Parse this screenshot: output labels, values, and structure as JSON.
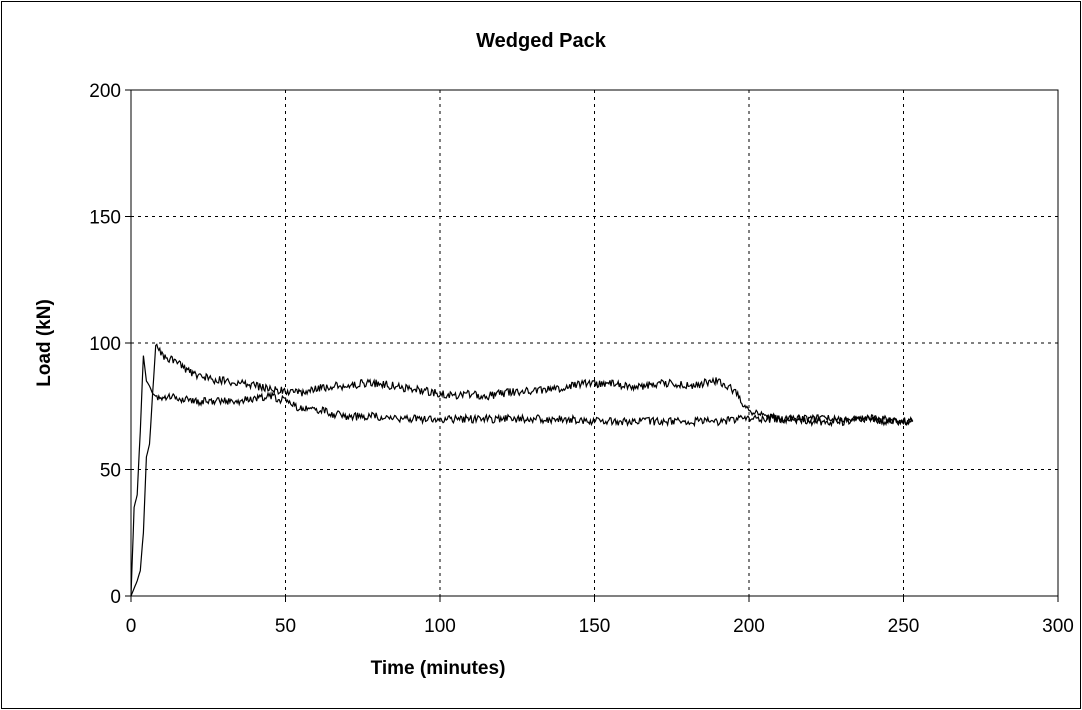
{
  "chart_data": {
    "type": "line",
    "title": "Wedged Pack",
    "xlabel": "Time (minutes)",
    "ylabel": "Load (kN)",
    "xlim": [
      0,
      300
    ],
    "ylim": [
      0,
      200
    ],
    "x_ticks": [
      0,
      50,
      100,
      150,
      200,
      250,
      300
    ],
    "y_ticks": [
      0,
      50,
      100,
      150,
      200
    ],
    "grid": true,
    "legend": "none",
    "line_color": "#000000",
    "series": [
      {
        "x": [
          0,
          1,
          2,
          3,
          4,
          5,
          6,
          7,
          8,
          10,
          15,
          20,
          25,
          30,
          35,
          40,
          45,
          50,
          55,
          60,
          65,
          70,
          75,
          80,
          85,
          90,
          95,
          100,
          105,
          110,
          115,
          120,
          125,
          130,
          135,
          140,
          145,
          150,
          155,
          160,
          165,
          170,
          175,
          180,
          185,
          190,
          193,
          196,
          198,
          200,
          203,
          205,
          210,
          215,
          220,
          225,
          230,
          235,
          240,
          245,
          250,
          253
        ],
        "y": [
          0,
          3,
          6,
          10,
          25,
          55,
          60,
          80,
          99,
          95,
          92,
          88,
          86,
          85,
          84,
          83,
          82,
          81,
          80,
          82,
          83,
          83,
          84,
          84,
          83,
          82,
          81,
          80,
          79,
          80,
          79,
          80,
          81,
          81,
          82,
          82,
          84,
          84,
          84,
          83,
          83,
          84,
          84,
          83,
          84,
          85,
          83,
          80,
          76,
          73,
          72,
          71,
          70,
          70,
          69,
          69,
          69,
          70,
          70,
          69,
          69,
          69
        ]
      },
      {
        "x": [
          0,
          1,
          2,
          3,
          4,
          5,
          6,
          7,
          8,
          10,
          15,
          20,
          25,
          30,
          35,
          40,
          45,
          50,
          55,
          60,
          65,
          70,
          75,
          80,
          85,
          90,
          95,
          100,
          110,
          120,
          130,
          140,
          150,
          160,
          170,
          180,
          190,
          200,
          210,
          220,
          230,
          240,
          250,
          253
        ],
        "y": [
          0,
          35,
          40,
          65,
          95,
          85,
          83,
          80,
          79,
          79,
          78,
          77,
          77,
          77,
          77,
          78,
          79,
          77,
          74,
          74,
          72,
          71,
          71,
          71,
          70,
          70,
          70,
          70,
          70,
          70,
          70,
          70,
          69,
          69,
          69,
          69,
          69,
          70,
          70,
          70,
          70,
          70,
          69,
          69
        ]
      }
    ]
  }
}
